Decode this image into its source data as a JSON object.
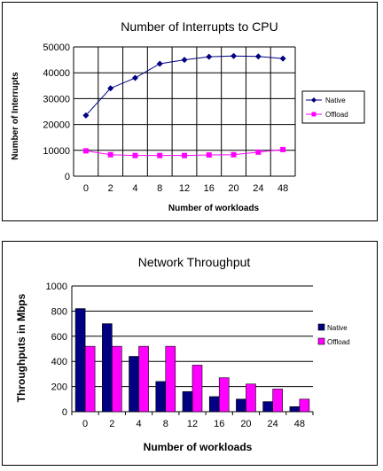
{
  "chart_data": [
    {
      "type": "line",
      "title": "Number of Interrupts to CPU",
      "xlabel": "Number of workloads",
      "ylabel": "Number of Interrupts",
      "categories": [
        "0",
        "2",
        "4",
        "8",
        "12",
        "16",
        "20",
        "24",
        "48"
      ],
      "ylim": [
        0,
        50000
      ],
      "yticks": [
        "0",
        "10000",
        "20000",
        "30000",
        "40000",
        "50000"
      ],
      "grid": "vertical and horizontal",
      "legend": "right",
      "series": [
        {
          "name": "Native",
          "color": "#000080",
          "marker": "diamond",
          "values": [
            23500,
            34000,
            38000,
            43500,
            45000,
            46200,
            46500,
            46300,
            45500
          ]
        },
        {
          "name": "Offload",
          "color": "#ff00ff",
          "marker": "square",
          "values": [
            9800,
            8300,
            8000,
            8000,
            8000,
            8200,
            8300,
            9300,
            10300
          ]
        }
      ]
    },
    {
      "type": "bar",
      "title": "Network Throughput",
      "xlabel": "Number of workloads",
      "ylabel": "Throughputs in Mbps",
      "categories": [
        "0",
        "2",
        "4",
        "8",
        "12",
        "16",
        "20",
        "24",
        "48"
      ],
      "ylim": [
        0,
        1000
      ],
      "yticks": [
        "0",
        "200",
        "400",
        "600",
        "800",
        "1000"
      ],
      "grid": "horizontal",
      "legend": "right",
      "series": [
        {
          "name": "Native",
          "color": "#000080",
          "values": [
            820,
            700,
            440,
            240,
            160,
            120,
            100,
            80,
            40
          ]
        },
        {
          "name": "Offload",
          "color": "#ff00ff",
          "values": [
            520,
            520,
            520,
            520,
            370,
            270,
            220,
            180,
            100
          ]
        }
      ]
    }
  ]
}
